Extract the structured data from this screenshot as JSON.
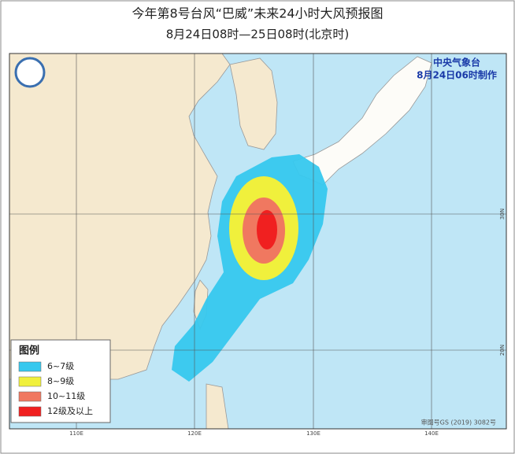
{
  "header": {
    "title": "今年第8号台风“巴威”未来24小时大风预报图",
    "subtitle": "8月24日08时—25日08时(北京时)"
  },
  "agency": {
    "name": "中央气象台",
    "issued": "8月24日06时制作"
  },
  "legend": {
    "title": "图例",
    "items": [
      {
        "label": "6~7级",
        "color": "#36c8ee"
      },
      {
        "label": "8~9级",
        "color": "#f0f03c"
      },
      {
        "label": "10~11级",
        "color": "#f07860"
      },
      {
        "label": "12级及以上",
        "color": "#f02020"
      }
    ]
  },
  "axes": {
    "lon_labels": [
      "110E",
      "120E",
      "130E",
      "140E"
    ],
    "lat_labels": [
      "30N",
      "20N"
    ]
  },
  "footer": {
    "approval": "审图号GS (2019) 3082号"
  }
}
